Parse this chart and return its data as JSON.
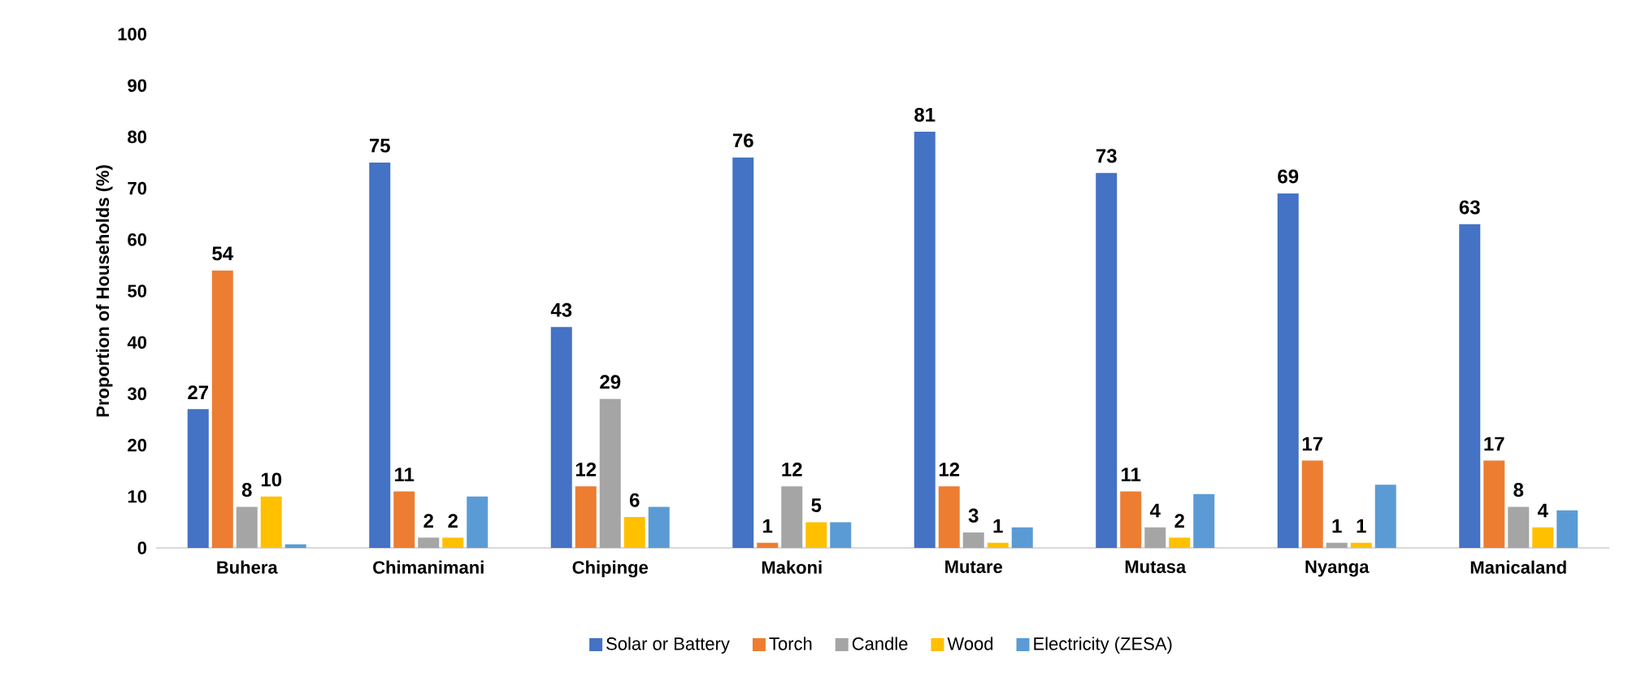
{
  "chart_data": {
    "type": "bar",
    "ylabel": "Proportion of Households (%)",
    "categories": [
      "Buhera",
      "Chimanimani",
      "Chipinge",
      "Makoni",
      "Mutare",
      "Mutasa",
      "Nyanga",
      "Manicaland"
    ],
    "series": [
      {
        "name": "Solar or Battery",
        "color": "#4472c4",
        "values": [
          27,
          75,
          43,
          76,
          81,
          73,
          69,
          63
        ],
        "value_labels": [
          "27",
          "75",
          "43",
          "76",
          "81",
          "73",
          "69",
          "63"
        ]
      },
      {
        "name": "Torch",
        "color": "#ed7d31",
        "values": [
          54,
          11,
          12,
          1,
          12,
          11,
          17,
          17
        ],
        "value_labels": [
          "54",
          "11",
          "12",
          "1",
          "12",
          "11",
          "17",
          "17"
        ]
      },
      {
        "name": "Candle",
        "color": "#a5a5a5",
        "values": [
          8,
          2,
          29,
          12,
          3,
          4,
          1,
          8
        ],
        "value_labels": [
          "8",
          "2",
          "29",
          "12",
          "3",
          "4",
          "1",
          "8"
        ]
      },
      {
        "name": "Wood",
        "color": "#ffc000",
        "values": [
          10,
          2,
          6,
          5,
          1,
          2,
          1,
          4
        ],
        "value_labels": [
          "10",
          "2",
          "6",
          "5",
          "1",
          "2",
          "1",
          "4"
        ]
      },
      {
        "name": "Electricity (ZESA)",
        "color": "#5b9bd5",
        "values": [
          0.7,
          10,
          8,
          5,
          4,
          10.5,
          12.3,
          7.3
        ]
      }
    ],
    "ylim": [
      0,
      100
    ],
    "yticks": [
      0,
      10,
      20,
      30,
      40,
      50,
      60,
      70,
      80,
      90,
      100
    ],
    "grid": false,
    "legend": "bottom"
  }
}
